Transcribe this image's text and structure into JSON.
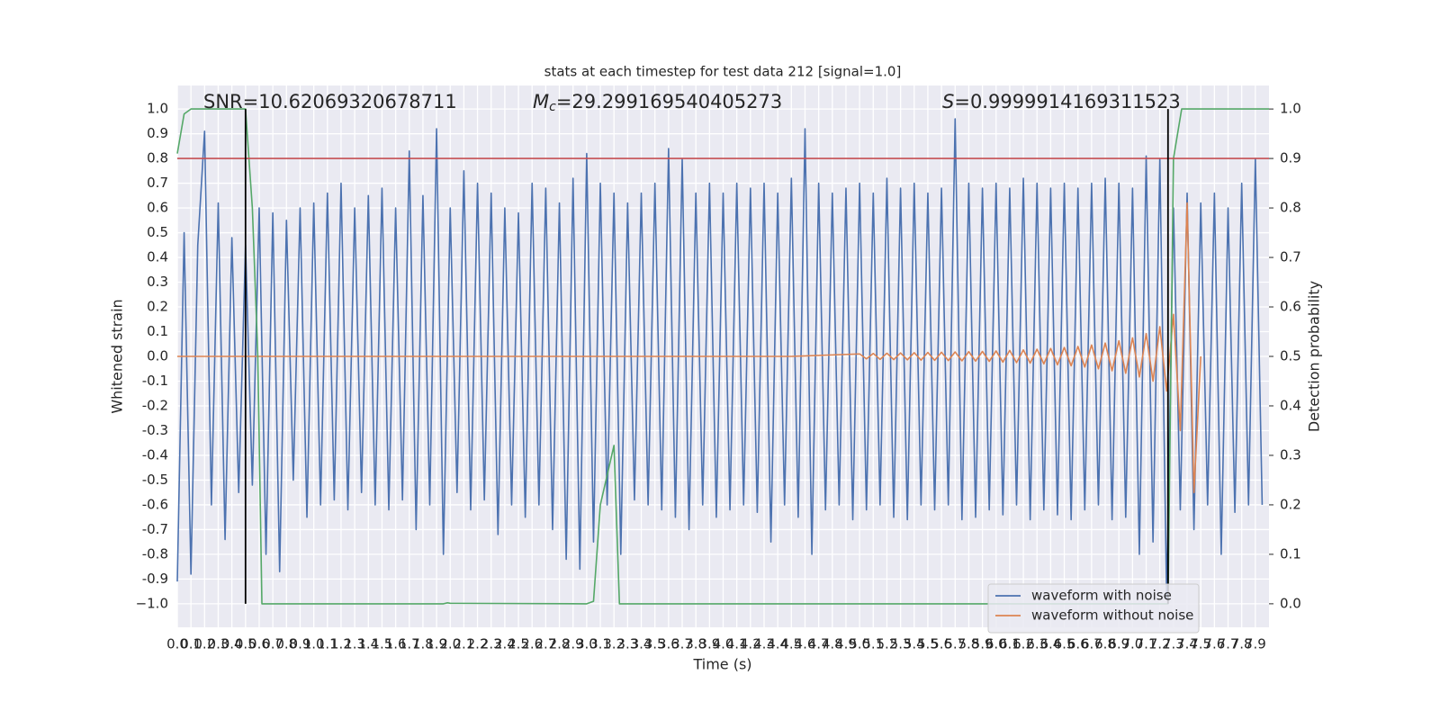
{
  "chart_data": {
    "type": "line",
    "title": "stats at each timestep for test data 212 [signal=1.0]",
    "x_label": "Time (s)",
    "y_label": "Whitened strain",
    "y2_label": "Detection probability",
    "annotations": [
      {
        "parts": [
          "SNR=10.62069320678711"
        ]
      },
      {
        "parts": [
          "M",
          "c",
          "=29.299169540405273"
        ]
      },
      {
        "parts": [
          "S",
          "=0.9999914169311523"
        ]
      }
    ],
    "xlim": [
      0,
      8.0
    ],
    "ylim": [
      -1.095,
      1.095
    ],
    "y2lim": [
      -0.0475,
      1.0475
    ],
    "grid": true,
    "background": "#eaeaf2",
    "legend_position": "lower right",
    "xticks": [
      {
        "value": 0,
        "label": "0.0"
      },
      0.1,
      0.2,
      0.3,
      0.4,
      0.5,
      0.6,
      0.7,
      0.8,
      0.9,
      {
        "value": 1,
        "label": "1.0"
      },
      1.1,
      1.2,
      1.3,
      1.4,
      1.5,
      1.6,
      1.7,
      1.8,
      1.9,
      {
        "value": 2,
        "label": "2.0"
      },
      2.1,
      2.2,
      2.3,
      2.4,
      2.5,
      2.6,
      2.7,
      2.8,
      2.9,
      {
        "value": 3,
        "label": "3.0"
      },
      3.1,
      3.2,
      3.3,
      3.4,
      3.5,
      3.6,
      3.7,
      3.8,
      3.9,
      {
        "value": 4,
        "label": "4.0"
      },
      4.1,
      4.2,
      4.3,
      4.4,
      4.5,
      4.6,
      4.7,
      4.8,
      4.9,
      {
        "value": 5,
        "label": "5.0"
      },
      5.1,
      5.2,
      5.3,
      5.4,
      5.5,
      5.6,
      5.7,
      5.8,
      5.9,
      {
        "value": 6,
        "label": "6.0"
      },
      6.1,
      6.2,
      6.3,
      6.4,
      6.5,
      6.6,
      6.7,
      6.8,
      6.9,
      {
        "value": 7,
        "label": "7.0"
      },
      7.1,
      7.2,
      7.3,
      7.4,
      7.5,
      7.6,
      7.7,
      7.8,
      7.9
    ],
    "yticks": [
      {
        "value": -1,
        "label": "−1.0"
      },
      -0.9,
      -0.8,
      -0.7,
      -0.6,
      -0.5,
      -0.4,
      -0.3,
      -0.2,
      -0.1,
      {
        "value": 0,
        "label": "0.0"
      },
      0.1,
      0.2,
      0.3,
      0.4,
      0.5,
      0.6,
      0.7,
      0.8,
      0.9,
      {
        "value": 1,
        "label": "1.0"
      }
    ],
    "y2ticks": [
      {
        "value": 0,
        "label": "0.0"
      },
      0.1,
      0.2,
      0.3,
      0.4,
      0.5,
      0.6,
      0.7,
      0.8,
      0.9,
      {
        "value": 1,
        "label": "1.0"
      }
    ],
    "hlines": [
      {
        "axis": "y2",
        "value": 0.9,
        "color": "#c44e52"
      }
    ],
    "vlines": [
      {
        "x": 0.5,
        "color": "#000000"
      },
      {
        "x": 7.26,
        "color": "#000000"
      }
    ],
    "series": [
      {
        "name": "waveform with noise",
        "color": "#4c72b0",
        "x": [
          0,
          0.05,
          0.1,
          0.15,
          0.2,
          0.25,
          0.3,
          0.35,
          0.4,
          0.45,
          0.5,
          0.55,
          0.6,
          0.65,
          0.7,
          0.75,
          0.8,
          0.85,
          0.9,
          0.95,
          1,
          1.05,
          1.1,
          1.15,
          1.2,
          1.25,
          1.3,
          1.35,
          1.4,
          1.45,
          1.5,
          1.55,
          1.6,
          1.65,
          1.7,
          1.75,
          1.8,
          1.85,
          1.9,
          1.95,
          2,
          2.05,
          2.1,
          2.15,
          2.2,
          2.25,
          2.3,
          2.35,
          2.4,
          2.45,
          2.5,
          2.55,
          2.6,
          2.65,
          2.7,
          2.75,
          2.8,
          2.85,
          2.9,
          2.95,
          3,
          3.05,
          3.1,
          3.15,
          3.2,
          3.25,
          3.3,
          3.35,
          3.4,
          3.45,
          3.5,
          3.55,
          3.6,
          3.65,
          3.7,
          3.75,
          3.8,
          3.85,
          3.9,
          3.95,
          4,
          4.05,
          4.1,
          4.15,
          4.2,
          4.25,
          4.3,
          4.35,
          4.4,
          4.45,
          4.5,
          4.55,
          4.6,
          4.65,
          4.7,
          4.75,
          4.8,
          4.85,
          4.9,
          4.95,
          5,
          5.05,
          5.1,
          5.15,
          5.2,
          5.25,
          5.3,
          5.35,
          5.4,
          5.45,
          5.5,
          5.55,
          5.6,
          5.65,
          5.7,
          5.75,
          5.8,
          5.85,
          5.9,
          5.95,
          6,
          6.05,
          6.1,
          6.15,
          6.2,
          6.25,
          6.3,
          6.35,
          6.4,
          6.45,
          6.5,
          6.55,
          6.6,
          6.65,
          6.7,
          6.75,
          6.8,
          6.85,
          6.9,
          6.95,
          7,
          7.05,
          7.1,
          7.15,
          7.2,
          7.25,
          7.3,
          7.35,
          7.4,
          7.45,
          7.5,
          7.55,
          7.6,
          7.65,
          7.7,
          7.75,
          7.8,
          7.85,
          7.9,
          7.95
        ],
        "values": [
          -0.91,
          0.5,
          -0.88,
          0.45,
          0.91,
          -0.6,
          0.62,
          -0.74,
          0.48,
          -0.55,
          0.45,
          -0.52,
          0.6,
          -0.8,
          0.58,
          -0.87,
          0.55,
          -0.5,
          0.6,
          -0.65,
          0.62,
          -0.6,
          0.66,
          -0.58,
          0.7,
          -0.62,
          0.6,
          -0.55,
          0.65,
          -0.6,
          0.68,
          -0.62,
          0.6,
          -0.58,
          0.83,
          -0.7,
          0.65,
          -0.6,
          0.92,
          -0.8,
          0.6,
          -0.55,
          0.75,
          -0.62,
          0.7,
          -0.58,
          0.66,
          -0.72,
          0.6,
          -0.6,
          0.58,
          -0.65,
          0.7,
          -0.6,
          0.68,
          -0.7,
          0.62,
          -0.82,
          0.72,
          -0.86,
          0.82,
          -0.75,
          0.7,
          -0.6,
          0.66,
          -0.8,
          0.62,
          -0.58,
          0.66,
          -0.6,
          0.7,
          -0.62,
          0.84,
          -0.65,
          0.8,
          -0.7,
          0.66,
          -0.6,
          0.7,
          -0.65,
          0.66,
          -0.62,
          0.7,
          -0.6,
          0.68,
          -0.63,
          0.7,
          -0.75,
          0.66,
          -0.6,
          0.72,
          -0.65,
          0.92,
          -0.8,
          0.7,
          -0.62,
          0.66,
          -0.6,
          0.68,
          -0.66,
          0.7,
          -0.62,
          0.66,
          -0.6,
          0.72,
          -0.65,
          0.68,
          -0.66,
          0.7,
          -0.6,
          0.66,
          -0.62,
          0.68,
          -0.6,
          0.96,
          -0.66,
          0.7,
          -0.65,
          0.68,
          -0.62,
          0.7,
          -0.64,
          0.68,
          -0.6,
          0.72,
          -0.66,
          0.7,
          -0.62,
          0.68,
          -0.64,
          0.7,
          -0.66,
          0.68,
          -0.62,
          0.7,
          -0.6,
          0.72,
          -0.66,
          0.7,
          -0.65,
          0.68,
          -0.8,
          0.81,
          -0.75,
          0.8,
          -0.98,
          0.6,
          -0.62,
          0.66,
          -0.7,
          0.62,
          -0.6,
          0.66,
          -0.8,
          0.6,
          -0.63,
          0.7,
          -0.6,
          0.8,
          -0.6
        ]
      },
      {
        "name": "waveform without noise",
        "color": "#dd8452",
        "x": [
          0,
          4.5,
          5,
          5.05,
          5.1,
          5.15,
          5.2,
          5.25,
          5.3,
          5.35,
          5.4,
          5.45,
          5.5,
          5.55,
          5.6,
          5.65,
          5.7,
          5.75,
          5.8,
          5.85,
          5.9,
          5.95,
          6,
          6.05,
          6.1,
          6.15,
          6.2,
          6.25,
          6.3,
          6.35,
          6.4,
          6.45,
          6.5,
          6.55,
          6.6,
          6.65,
          6.7,
          6.75,
          6.8,
          6.85,
          6.9,
          6.95,
          7,
          7.05,
          7.1,
          7.15,
          7.2,
          7.25,
          7.3,
          7.35,
          7.4,
          7.45,
          7.5
        ],
        "values": [
          0,
          0,
          0.01,
          -0.01,
          0.012,
          -0.012,
          0.013,
          -0.013,
          0.014,
          -0.014,
          0.015,
          -0.015,
          0.016,
          -0.016,
          0.017,
          -0.017,
          0.018,
          -0.018,
          0.019,
          -0.019,
          0.02,
          -0.02,
          0.022,
          -0.023,
          0.024,
          -0.025,
          0.026,
          -0.027,
          0.029,
          -0.03,
          0.032,
          -0.034,
          0.036,
          -0.038,
          0.04,
          -0.043,
          0.046,
          -0.05,
          0.054,
          -0.058,
          0.063,
          -0.068,
          0.075,
          -0.083,
          0.092,
          -0.1,
          0.12,
          -0.14,
          0.17,
          -0.3,
          0.62,
          -0.55,
          0
        ]
      },
      {
        "color": "#55a868",
        "axis": "y2",
        "x": [
          0,
          0.05,
          0.1,
          0.5,
          0.55,
          0.59,
          0.62,
          1.95,
          1.98,
          2.0,
          3.0,
          3.05,
          3.1,
          3.2,
          3.24,
          7.26,
          7.3,
          7.36,
          8.0
        ],
        "values": [
          0.91,
          0.99,
          1.0,
          1.0,
          0.8,
          0.5,
          0.0,
          0.0,
          0.002,
          0.001,
          0.0,
          0.005,
          0.2,
          0.32,
          0.0,
          0.0,
          0.9,
          1.0,
          1.0
        ]
      }
    ]
  }
}
